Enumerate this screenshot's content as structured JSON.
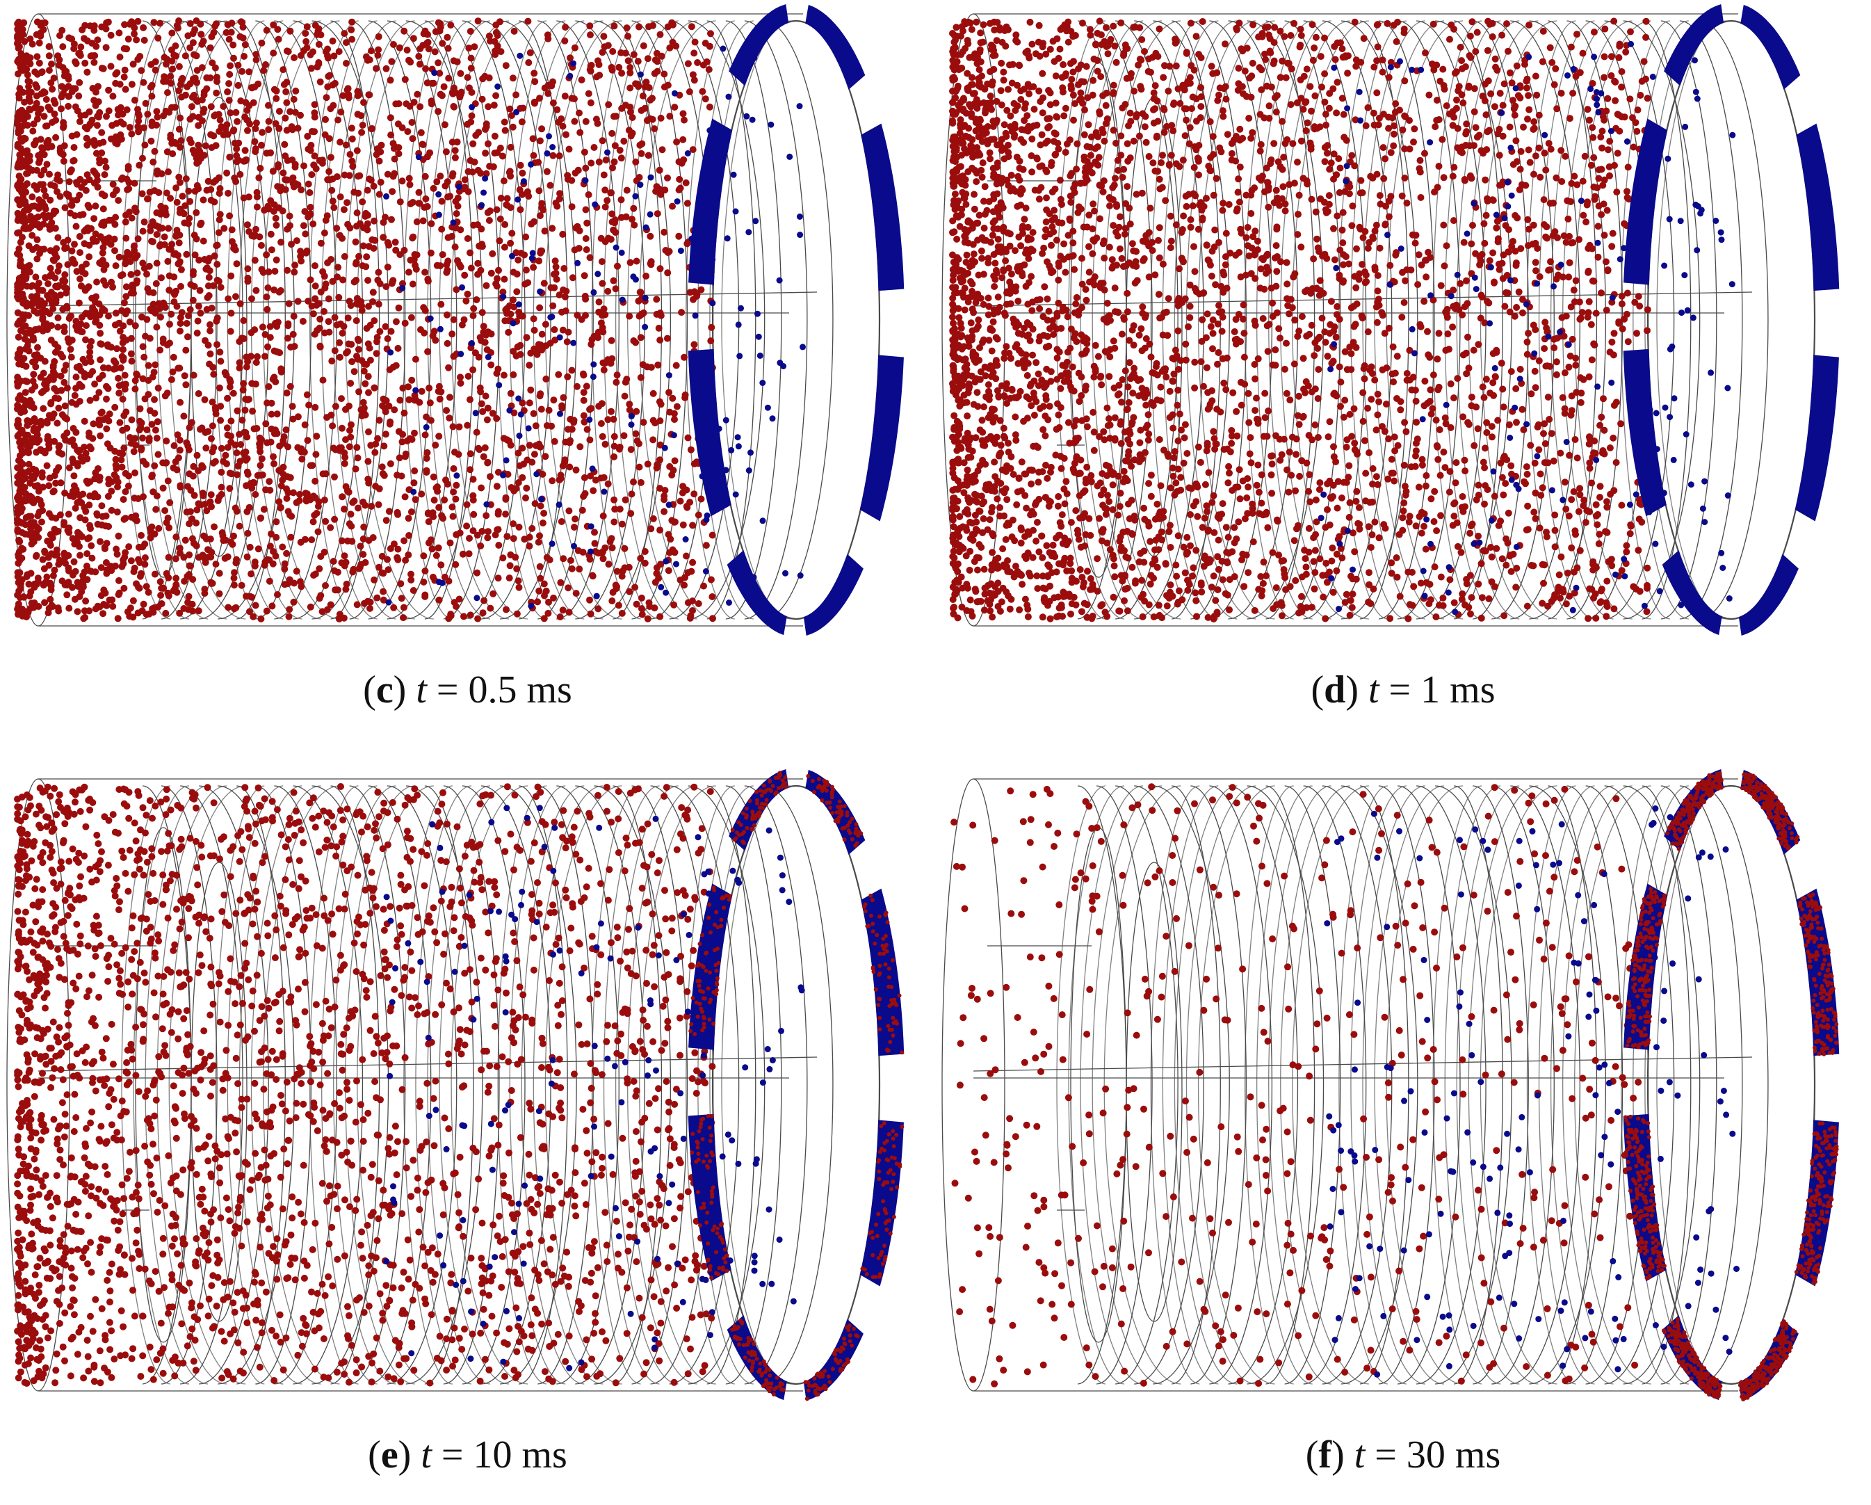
{
  "panels": [
    {
      "id": "c",
      "letter": "c",
      "time_label": "t",
      "time_value": "= 0.5 ms",
      "red_density": 1.0,
      "blue_wall": "solid",
      "red_on_blocks": 0.0
    },
    {
      "id": "d",
      "letter": "d",
      "time_label": "t",
      "time_value": "= 1 ms",
      "red_density": 0.95,
      "blue_wall": "solid",
      "red_on_blocks": 0.0
    },
    {
      "id": "e",
      "letter": "e",
      "time_label": "t",
      "time_value": "= 10 ms",
      "red_density": 0.6,
      "blue_wall": "solid",
      "red_on_blocks": 0.25
    },
    {
      "id": "f",
      "letter": "f",
      "time_label": "t",
      "time_value": "= 30 ms",
      "red_density": 0.12,
      "blue_wall": "mixed",
      "red_on_blocks": 0.7
    }
  ],
  "colors": {
    "red_particle": "#9b0d0d",
    "blue_particle": "#0a0a8c",
    "mesh_line": "#2b2b2b",
    "caption_text": "#111111"
  }
}
